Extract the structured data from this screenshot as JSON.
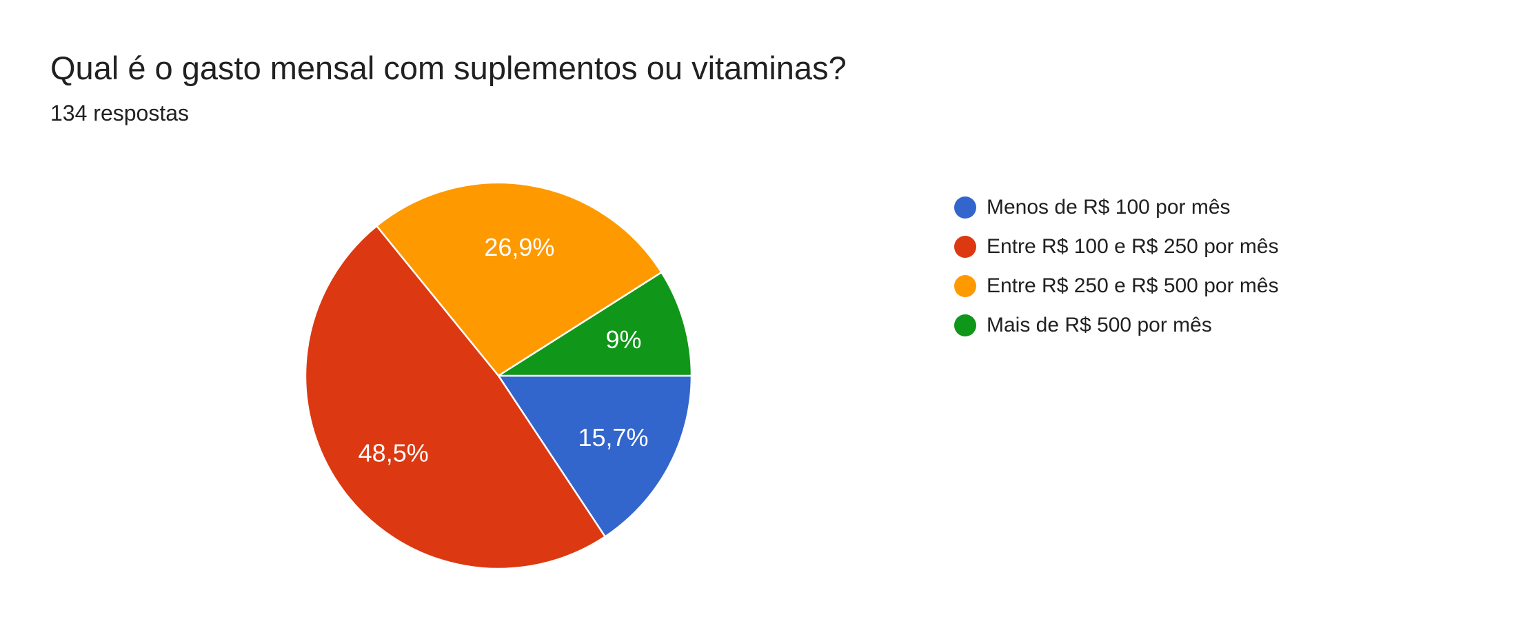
{
  "header": {
    "title": "Qual é o gasto mensal com suplementos ou vitaminas?",
    "subtitle": "134 respostas"
  },
  "chart_data": {
    "type": "pie",
    "title": "Qual é o gasto mensal com suplementos ou vitaminas?",
    "subtitle": "134 respostas",
    "responses_count": 134,
    "legend_position": "right",
    "start_angle_deg": 0,
    "direction": "clockwise",
    "slice_border_color": "#ffffff",
    "label_color": "#ffffff",
    "text_color": "#212121",
    "background_color": "#ffffff",
    "slices": [
      {
        "label": "Menos de R$ 100 por mês",
        "value_pct": 15.7,
        "display": "15,7%",
        "color": "#3366CC"
      },
      {
        "label": "Entre R$ 100 e R$ 250 por mês",
        "value_pct": 48.5,
        "display": "48,5%",
        "color": "#DC3912"
      },
      {
        "label": "Entre R$ 250 e R$ 500 por mês",
        "value_pct": 26.9,
        "display": "26,9%",
        "color": "#FF9900"
      },
      {
        "label": "Mais de R$ 500 por mês",
        "value_pct": 9.0,
        "display": "9%",
        "color": "#109618"
      }
    ]
  }
}
